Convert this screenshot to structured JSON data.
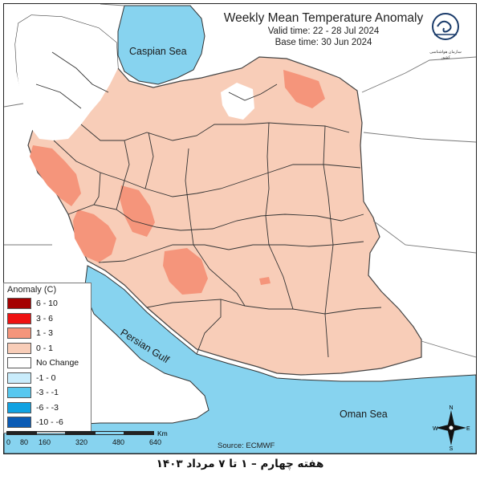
{
  "title": "Weekly Mean Temperature Anomaly",
  "valid_time": "Valid time: 22 - 28 Jul 2024",
  "base_time": "Base time: 30 Jun 2024",
  "logo_text": "سازمان هواشناسی کشور",
  "seas": {
    "caspian": "Caspian Sea",
    "persian_gulf": "Persian Gulf",
    "oman": "Oman Sea"
  },
  "legend": {
    "title": "Anomaly (C)",
    "items": [
      {
        "label": "6 - 10",
        "color": "#a50000"
      },
      {
        "label": "3 - 6",
        "color": "#ee1111"
      },
      {
        "label": "1 - 3",
        "color": "#f5957b"
      },
      {
        "label": "0 - 1",
        "color": "#f8cdb8"
      },
      {
        "label": "No Change",
        "color": "#ffffff"
      },
      {
        "label": "-1 - 0",
        "color": "#c9ecfb"
      },
      {
        "label": "-3 - -1",
        "color": "#57c8ef"
      },
      {
        "label": "-6 - -3",
        "color": "#10a2e2"
      },
      {
        "label": "-10 - -6",
        "color": "#0a5bb5"
      }
    ]
  },
  "scale": {
    "ticks": [
      "0",
      "80",
      "160",
      "320",
      "480",
      "640"
    ],
    "unit": "Km"
  },
  "source": "Source: ECMWF",
  "compass": {
    "n": "N",
    "s": "S",
    "e": "E",
    "w": "W"
  },
  "caption": "هفته چهارم – ۱ تا ۷ مرداد ۱۴۰۳",
  "colors": {
    "sea": "#87d3ef",
    "land_outside": "#ffffff",
    "anomaly_low": "#f8cdb8",
    "anomaly_mid": "#f5957b",
    "no_change": "#ffffff"
  }
}
